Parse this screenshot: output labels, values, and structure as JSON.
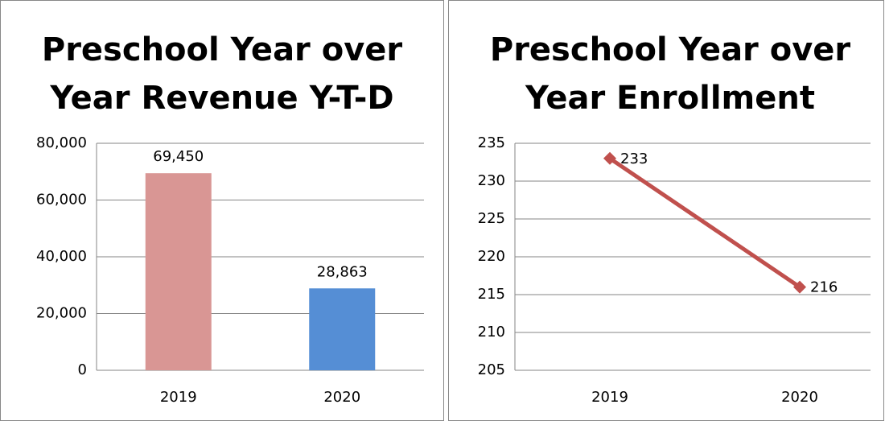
{
  "chart_data": [
    {
      "type": "bar",
      "title": "Preschool Year over Year Revenue Y-T-D",
      "categories": [
        "2019",
        "2020"
      ],
      "values": [
        69450,
        28863
      ],
      "value_labels": [
        "69,450",
        "28,863"
      ],
      "colors": [
        "#d99694",
        "#558ed5"
      ],
      "ylim": [
        0,
        80000
      ],
      "yticks": [
        0,
        {
          "value": 20000,
          "label": "20,000"
        },
        {
          "value": 40000,
          "label": "40,000"
        },
        {
          "value": 60000,
          "label": "60,000"
        },
        {
          "value": 80000,
          "label": "80,000"
        }
      ],
      "grid": true
    },
    {
      "type": "line",
      "title": "Preschool Year over Year Enrollment",
      "categories": [
        "2019",
        "2020"
      ],
      "values": [
        233,
        216
      ],
      "color": "#c0504d",
      "ylim": [
        205,
        235
      ],
      "yticks": [
        205,
        210,
        215,
        220,
        225,
        230,
        235
      ],
      "grid": true
    }
  ]
}
